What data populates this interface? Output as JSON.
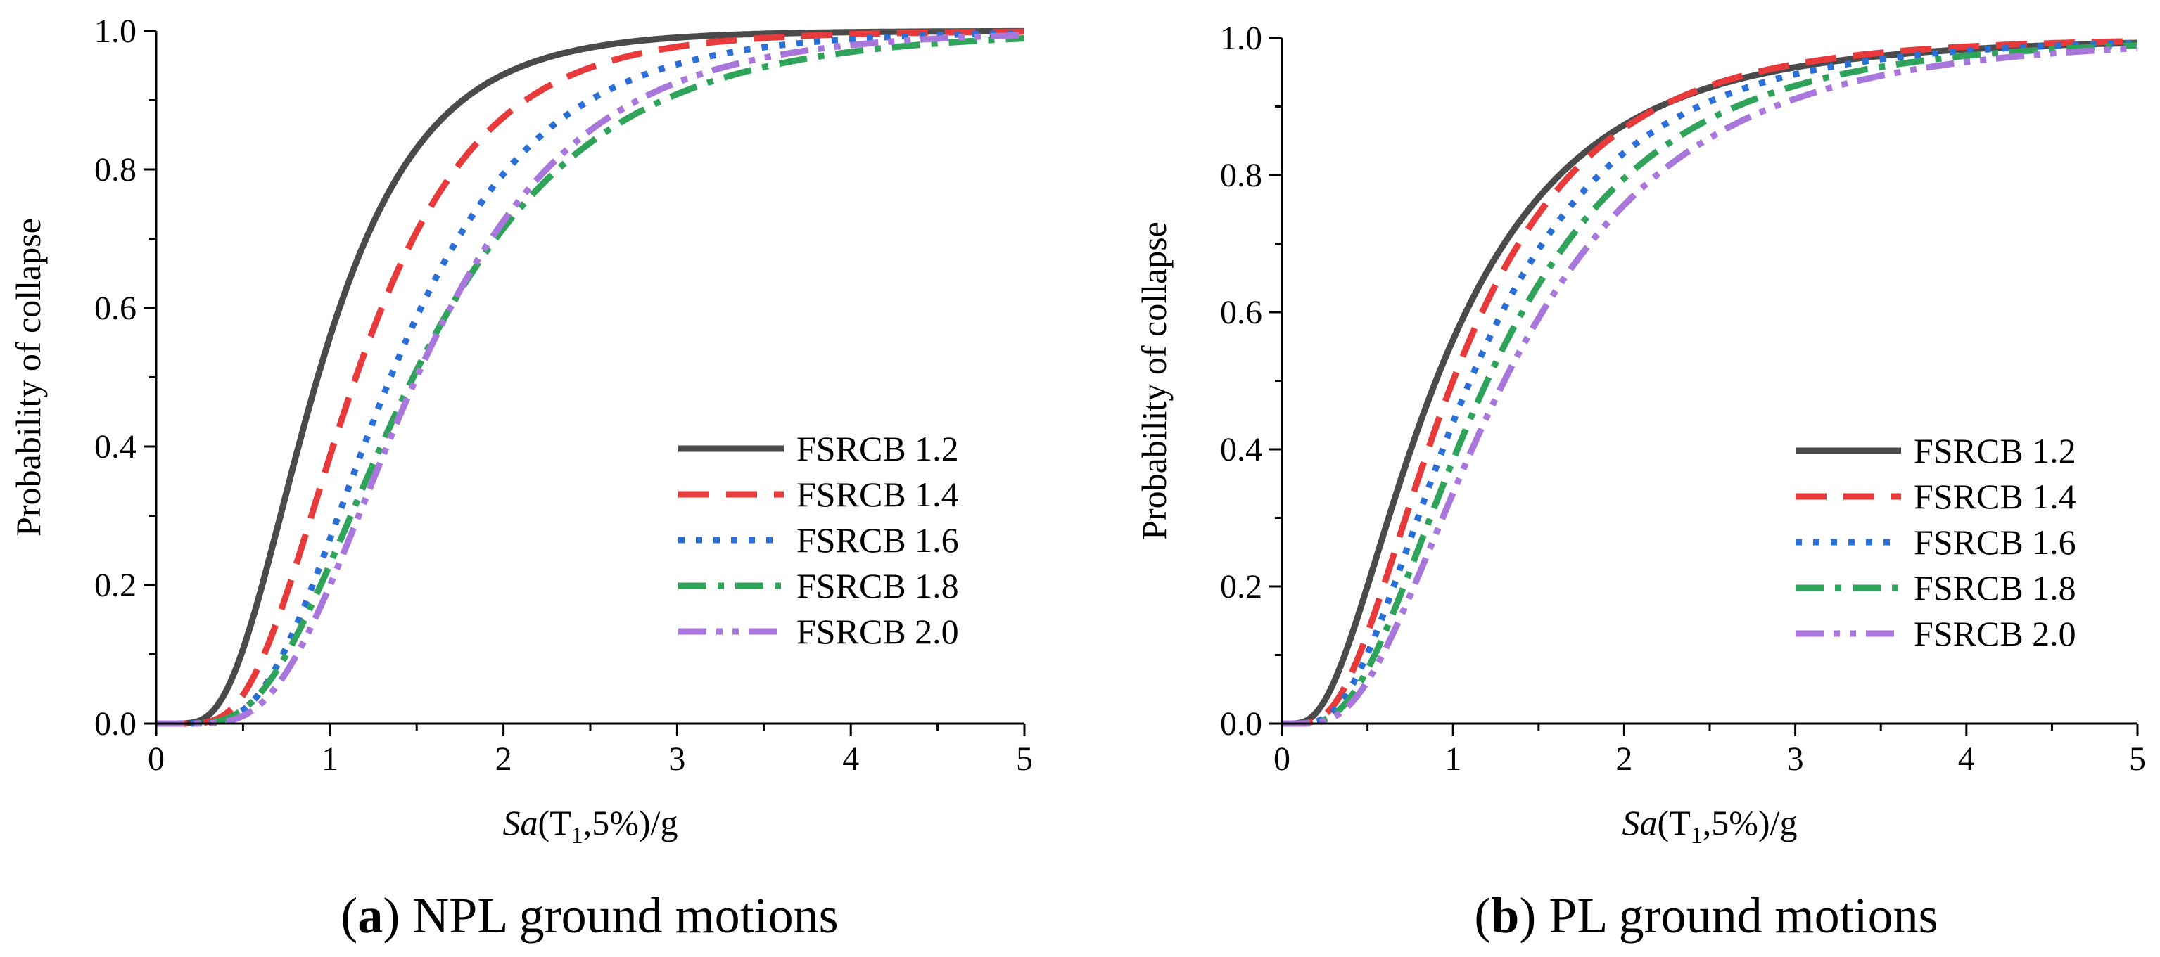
{
  "colors": {
    "FSRCB 1.2": "#4a4a4a",
    "FSRCB 1.4": "#e8393b",
    "FSRCB 1.6": "#2a6fd6",
    "FSRCB 1.8": "#2fa35a",
    "FSRCB 2.0": "#a977dc"
  },
  "chart_data": [
    {
      "type": "line",
      "caption_letter": "a",
      "caption_text": " NPL ground motions",
      "ylabel": "Probability of collapse",
      "xlabel_italic": "Sa",
      "xlabel_rest": "(T",
      "xlabel_sub": "1",
      "xlabel_end": ",5%)/g",
      "xlim": [
        0,
        5
      ],
      "ylim": [
        0,
        1
      ],
      "x_ticks": [
        "0",
        "1",
        "2",
        "3",
        "4",
        "5"
      ],
      "y_ticks": [
        "0.0",
        "0.2",
        "0.4",
        "0.6",
        "0.8",
        "1.0"
      ],
      "grid": false,
      "legend": "center-right",
      "series": [
        {
          "name": "FSRCB 1.2",
          "median": 0.93,
          "beta": 0.5,
          "dash": "solid"
        },
        {
          "name": "FSRCB 1.4",
          "median": 1.15,
          "beta": 0.48,
          "dash": "dash"
        },
        {
          "name": "FSRCB 1.6",
          "median": 1.35,
          "beta": 0.48,
          "dash": "dot"
        },
        {
          "name": "FSRCB 1.8",
          "median": 1.48,
          "beta": 0.53,
          "dash": "dashdot"
        },
        {
          "name": "FSRCB 2.0",
          "median": 1.5,
          "beta": 0.48,
          "dash": "dashdotdot"
        }
      ]
    },
    {
      "type": "line",
      "caption_letter": "b",
      "caption_text": " PL ground motions",
      "ylabel": "Probability of collapse",
      "xlabel_italic": "Sa",
      "xlabel_rest": "(T",
      "xlabel_sub": "1",
      "xlabel_end": ",5%)/g",
      "xlim": [
        0,
        5
      ],
      "ylim": [
        0,
        1
      ],
      "x_ticks": [
        "0",
        "1",
        "2",
        "3",
        "4",
        "5"
      ],
      "y_ticks": [
        "0.0",
        "0.2",
        "0.4",
        "0.6",
        "0.8",
        "1.0"
      ],
      "grid": false,
      "legend": "center-right",
      "series": [
        {
          "name": "FSRCB 1.2",
          "median": 0.9,
          "beta": 0.7,
          "dash": "solid"
        },
        {
          "name": "FSRCB 1.4",
          "median": 1.0,
          "beta": 0.62,
          "dash": "dash"
        },
        {
          "name": "FSRCB 1.6",
          "median": 1.1,
          "beta": 0.62,
          "dash": "dot"
        },
        {
          "name": "FSRCB 1.8",
          "median": 1.2,
          "beta": 0.62,
          "dash": "dashdot"
        },
        {
          "name": "FSRCB 2.0",
          "median": 1.3,
          "beta": 0.62,
          "dash": "dashdotdot"
        }
      ]
    }
  ]
}
